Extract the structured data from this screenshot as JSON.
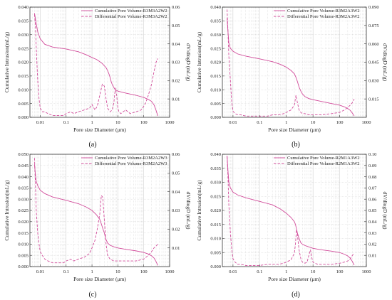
{
  "colors": {
    "series": "#d14b9a",
    "axis": "#333333",
    "grid": "#c8c8c8"
  },
  "chart_data": [
    {
      "type": "line",
      "panel_label": "(a)",
      "xlabel": "Pore size Diameter (μm)",
      "ylabel": "Cumulative Intrusion(mL/g)",
      "y2label": "dV/dlogD (mL/g)",
      "xscale": "log",
      "xlim": [
        0.004,
        1000
      ],
      "ylim": [
        0,
        0.04
      ],
      "y2lim": [
        0,
        0.06
      ],
      "x_ticks": [
        "0.01",
        "0.1",
        "1",
        "10",
        "100",
        "1000"
      ],
      "y_ticks": [
        "0.000",
        "0.005",
        "0.010",
        "0.015",
        "0.020",
        "0.025",
        "0.030",
        "0.035",
        "0.040"
      ],
      "y2_ticks": [
        "0.01",
        "0.02",
        "0.03",
        "0.04",
        "0.05",
        "0.06"
      ],
      "grid": true,
      "legend_position": "top-right",
      "series": [
        {
          "name": "Cumulative Pore Volume-R3M3A2W2",
          "axis": "left",
          "style": "solid",
          "x": [
            0.006,
            0.007,
            0.008,
            0.01,
            0.015,
            0.03,
            0.1,
            0.3,
            0.6,
            1,
            1.5,
            2,
            2.5,
            3,
            3.5,
            4,
            4.5,
            5,
            5.5,
            6,
            7,
            8,
            10,
            20,
            50,
            100,
            150,
            200,
            250,
            300,
            350
          ],
          "y": [
            0.0378,
            0.034,
            0.031,
            0.0285,
            0.0265,
            0.0255,
            0.0248,
            0.0238,
            0.0227,
            0.0217,
            0.021,
            0.0202,
            0.0195,
            0.0187,
            0.018,
            0.017,
            0.0158,
            0.0145,
            0.013,
            0.012,
            0.0108,
            0.01,
            0.0095,
            0.0088,
            0.008,
            0.0072,
            0.0065,
            0.0058,
            0.0045,
            0.0025,
            0.0005
          ]
        },
        {
          "name": "Differential Pore Volume-R3M3A2W2",
          "axis": "right",
          "style": "dashed",
          "x": [
            0.006,
            0.0065,
            0.007,
            0.008,
            0.009,
            0.01,
            0.012,
            0.015,
            0.02,
            0.03,
            0.05,
            0.08,
            0.1,
            0.15,
            0.2,
            0.3,
            0.5,
            0.8,
            1,
            1.3,
            1.6,
            2,
            2.5,
            3,
            3.5,
            4,
            5,
            6,
            7,
            8,
            9,
            10,
            11,
            13,
            16,
            20,
            30,
            50,
            80,
            100,
            120,
            150,
            200,
            250,
            300,
            350
          ],
          "y": [
            0.056,
            0.05,
            0.038,
            0.02,
            0.01,
            0.005,
            0.003,
            0.003,
            0.002,
            0.001,
            0.001,
            0.001,
            0.002,
            0.003,
            0.002,
            0.003,
            0.004,
            0.005,
            0.007,
            0.004,
            0.006,
            0.012,
            0.018,
            0.017,
            0.01,
            0.005,
            0.003,
            0.004,
            0.008,
            0.016,
            0.012,
            0.005,
            0.003,
            0.002,
            0.003,
            0.004,
            0.002,
            0.003,
            0.004,
            0.006,
            0.008,
            0.012,
            0.018,
            0.025,
            0.03,
            0.032
          ]
        }
      ]
    },
    {
      "type": "line",
      "panel_label": "(b)",
      "xlabel": "Pore size Diameter (μm)",
      "ylabel": "Cumulative Intrusion(mL/g)",
      "y2label": "dV/dlogD (mL/g)",
      "xscale": "log",
      "xlim": [
        0.004,
        1000
      ],
      "ylim": [
        0,
        0.04
      ],
      "y2lim": [
        0,
        0.09
      ],
      "x_ticks": [
        "0.01",
        "0.1",
        "1",
        "10",
        "100",
        "1000"
      ],
      "y_ticks": [
        "0.000",
        "0.005",
        "0.010",
        "0.015",
        "0.020",
        "0.025",
        "0.030",
        "0.035",
        "0.040"
      ],
      "y2_ticks": [
        "0.015",
        "0.030",
        "0.045",
        "0.060",
        "0.075",
        "0.090"
      ],
      "grid": true,
      "legend_position": "top-right",
      "series": [
        {
          "name": "Cumulative Pore Volume-R3M2A3W2",
          "axis": "left",
          "style": "solid",
          "x": [
            0.006,
            0.0065,
            0.007,
            0.008,
            0.01,
            0.015,
            0.03,
            0.1,
            0.3,
            0.6,
            1,
            1.5,
            2,
            2.3,
            2.6,
            3,
            3.5,
            4,
            5,
            7,
            10,
            20,
            50,
            100,
            150,
            200,
            250,
            300,
            350
          ],
          "y": [
            0.036,
            0.031,
            0.027,
            0.025,
            0.024,
            0.023,
            0.0222,
            0.0212,
            0.0202,
            0.0192,
            0.0182,
            0.017,
            0.0158,
            0.0145,
            0.013,
            0.011,
            0.0095,
            0.0085,
            0.0075,
            0.0068,
            0.0064,
            0.0058,
            0.005,
            0.0044,
            0.0038,
            0.0032,
            0.0025,
            0.0015,
            0.0005
          ]
        },
        {
          "name": "Differential Pore Volume-R3M2A3W2",
          "axis": "right",
          "style": "dashed",
          "x": [
            0.006,
            0.0065,
            0.007,
            0.008,
            0.009,
            0.01,
            0.012,
            0.015,
            0.02,
            0.03,
            0.05,
            0.1,
            0.2,
            0.3,
            0.5,
            0.8,
            1,
            1.5,
            2,
            2.3,
            2.6,
            3,
            3.5,
            4,
            5,
            7,
            10,
            20,
            50,
            100,
            150,
            200,
            250,
            300,
            350
          ],
          "y": [
            0.088,
            0.07,
            0.05,
            0.03,
            0.012,
            0.005,
            0.003,
            0.002,
            0.002,
            0.001,
            0.001,
            0.001,
            0.001,
            0.002,
            0.002,
            0.003,
            0.004,
            0.006,
            0.01,
            0.018,
            0.012,
            0.006,
            0.004,
            0.003,
            0.003,
            0.002,
            0.002,
            0.002,
            0.003,
            0.004,
            0.006,
            0.008,
            0.01,
            0.012,
            0.015
          ]
        }
      ]
    },
    {
      "type": "line",
      "panel_label": "(c)",
      "xlabel": "Pore size Diameter (μm)",
      "ylabel": "Cumulative Intrusion(mL/g)",
      "y2label": "dV/dlogD (mL/g)",
      "xscale": "log",
      "xlim": [
        0.004,
        1000
      ],
      "ylim": [
        0,
        0.05
      ],
      "y2lim": [
        0,
        0.06
      ],
      "x_ticks": [
        "0.01",
        "0.1",
        "1",
        "10",
        "100",
        "1000"
      ],
      "y_ticks": [
        "0.000",
        "0.005",
        "0.010",
        "0.015",
        "0.020",
        "0.025",
        "0.030",
        "0.035",
        "0.040",
        "0.045",
        "0.050"
      ],
      "y2_ticks": [
        "0.01",
        "0.02",
        "0.03",
        "0.04",
        "0.05",
        "0.06"
      ],
      "grid": true,
      "legend_position": "top-right",
      "series": [
        {
          "name": "Cumulative Pore Volume-R3M2A2W3",
          "axis": "left",
          "style": "solid",
          "x": [
            0.006,
            0.0065,
            0.007,
            0.008,
            0.01,
            0.015,
            0.03,
            0.1,
            0.3,
            0.6,
            1,
            1.5,
            2,
            2.3,
            2.6,
            3,
            3.5,
            4,
            5,
            7,
            10,
            20,
            50,
            100,
            150,
            200,
            250,
            300,
            350
          ],
          "y": [
            0.0455,
            0.041,
            0.038,
            0.036,
            0.034,
            0.0325,
            0.031,
            0.0295,
            0.028,
            0.0265,
            0.025,
            0.023,
            0.021,
            0.019,
            0.017,
            0.015,
            0.012,
            0.0105,
            0.0095,
            0.0088,
            0.0083,
            0.0077,
            0.007,
            0.0063,
            0.0056,
            0.0048,
            0.0038,
            0.0022,
            0.0005
          ]
        },
        {
          "name": "Differential Pore Volume-R3M2A2W3",
          "axis": "right",
          "style": "dashed",
          "x": [
            0.006,
            0.0065,
            0.007,
            0.008,
            0.009,
            0.01,
            0.012,
            0.015,
            0.02,
            0.03,
            0.05,
            0.08,
            0.1,
            0.15,
            0.2,
            0.3,
            0.5,
            0.8,
            1,
            1.3,
            1.6,
            2,
            2.3,
            2.6,
            3,
            3.5,
            4,
            5,
            7,
            10,
            20,
            50,
            100,
            150,
            200,
            250,
            300,
            350
          ],
          "y": [
            0.058,
            0.045,
            0.03,
            0.018,
            0.012,
            0.008,
            0.006,
            0.004,
            0.003,
            0.002,
            0.002,
            0.002,
            0.003,
            0.004,
            0.003,
            0.004,
            0.005,
            0.007,
            0.01,
            0.014,
            0.02,
            0.028,
            0.038,
            0.037,
            0.025,
            0.012,
            0.006,
            0.004,
            0.003,
            0.003,
            0.003,
            0.003,
            0.004,
            0.006,
            0.008,
            0.01,
            0.011,
            0.012
          ]
        }
      ]
    },
    {
      "type": "line",
      "panel_label": "(d)",
      "xlabel": "Pore size Diameter (μm)",
      "ylabel": "Cumulative Intrusion(mL/g)",
      "y2label": "dV/dlogD (mL/g)",
      "xscale": "log",
      "xlim": [
        0.004,
        1000
      ],
      "ylim": [
        0,
        0.04
      ],
      "y2lim": [
        0,
        0.1
      ],
      "x_ticks": [
        "0.01",
        "0.1",
        "1",
        "10",
        "100",
        "1000"
      ],
      "y_ticks": [
        "0.000",
        "0.005",
        "0.010",
        "0.015",
        "0.020",
        "0.025",
        "0.030",
        "0.035",
        "0.040"
      ],
      "y2_ticks": [
        "0.01",
        "0.02",
        "0.03",
        "0.04",
        "0.05",
        "0.06",
        "0.07",
        "0.08",
        "0.09",
        "0.10"
      ],
      "grid": true,
      "legend_position": "top-right",
      "series": [
        {
          "name": "Cumulative Pore Volume-R2M1A3W2",
          "axis": "left",
          "style": "solid",
          "x": [
            0.006,
            0.0065,
            0.007,
            0.008,
            0.01,
            0.015,
            0.03,
            0.1,
            0.3,
            0.6,
            1,
            1.5,
            2,
            2.2,
            2.4,
            2.6,
            3,
            3.5,
            4,
            5,
            7,
            10,
            20,
            50,
            100,
            150,
            200,
            250,
            300,
            350
          ],
          "y": [
            0.0395,
            0.034,
            0.03,
            0.028,
            0.0265,
            0.0255,
            0.0245,
            0.0232,
            0.022,
            0.0205,
            0.019,
            0.0175,
            0.016,
            0.015,
            0.0135,
            0.012,
            0.01,
            0.0085,
            0.008,
            0.0075,
            0.007,
            0.0065,
            0.006,
            0.0055,
            0.005,
            0.0044,
            0.0038,
            0.003,
            0.0018,
            0.0005
          ]
        },
        {
          "name": "Differential Pore Volume-R2M1A3W2",
          "axis": "right",
          "style": "dashed",
          "x": [
            0.006,
            0.0065,
            0.007,
            0.008,
            0.009,
            0.01,
            0.012,
            0.015,
            0.02,
            0.03,
            0.05,
            0.1,
            0.2,
            0.3,
            0.5,
            0.8,
            1,
            1.5,
            2,
            2.2,
            2.4,
            2.6,
            3,
            3.5,
            4,
            5,
            6,
            7,
            8,
            9,
            10,
            12,
            15,
            20,
            50,
            100,
            150,
            200,
            250,
            300,
            350
          ],
          "y": [
            0.098,
            0.08,
            0.055,
            0.03,
            0.015,
            0.007,
            0.004,
            0.002,
            0.002,
            0.001,
            0.001,
            0.001,
            0.002,
            0.002,
            0.002,
            0.003,
            0.004,
            0.006,
            0.012,
            0.02,
            0.033,
            0.028,
            0.015,
            0.007,
            0.004,
            0.003,
            0.004,
            0.01,
            0.015,
            0.008,
            0.004,
            0.003,
            0.002,
            0.002,
            0.002,
            0.003,
            0.004,
            0.005,
            0.007,
            0.01,
            0.012
          ]
        }
      ]
    }
  ]
}
